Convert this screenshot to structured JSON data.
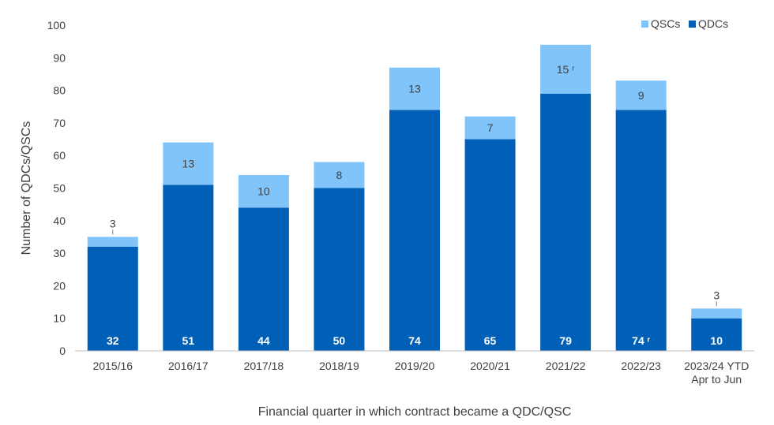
{
  "chart_data": {
    "type": "bar",
    "stacked": true,
    "categories": [
      "2015/16",
      "2016/17",
      "2017/18",
      "2018/19",
      "2019/20",
      "2020/21",
      "2021/22",
      "2022/23",
      "2023/24 YTD\nApr to Jun"
    ],
    "series": [
      {
        "name": "QDCs",
        "color": "#0060B8",
        "values": [
          32,
          51,
          44,
          50,
          74,
          65,
          79,
          74,
          10
        ],
        "labels": [
          "32",
          "51",
          "44",
          "50",
          "74",
          "65",
          "79",
          "74 ʳ",
          "10"
        ]
      },
      {
        "name": "QSCs",
        "color": "#80C4FA",
        "values": [
          3,
          13,
          10,
          8,
          13,
          7,
          15,
          9,
          3
        ],
        "labels": [
          "3",
          "13",
          "10",
          "8",
          "13",
          "7",
          "15 ʳ",
          "9",
          "3"
        ]
      }
    ],
    "ylim": [
      0,
      100
    ],
    "yticks": [
      0,
      10,
      20,
      30,
      40,
      50,
      60,
      70,
      80,
      90,
      100
    ],
    "xlabel": "Financial quarter in which contract became a QDC/QSC",
    "ylabel": "Number of QDCs/QSCs",
    "legend": {
      "position": "top-right",
      "order": [
        "QSCs",
        "QDCs"
      ]
    },
    "grid": false
  }
}
